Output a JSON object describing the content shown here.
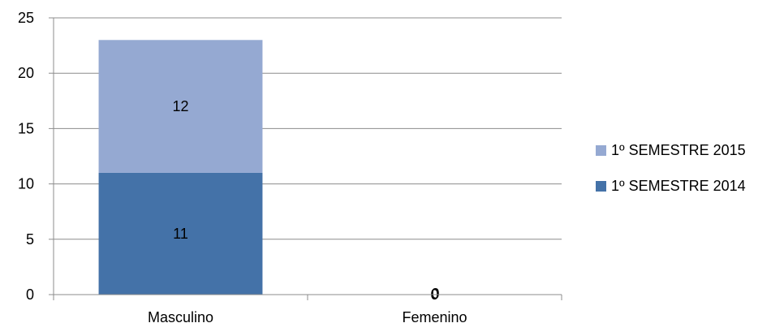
{
  "chart_data": {
    "type": "bar",
    "stacked": true,
    "categories": [
      "Masculino",
      "Femenino"
    ],
    "series": [
      {
        "name": "1º SEMESTRE 2014",
        "values": [
          11,
          0
        ],
        "color": "#4472A8",
        "labels": [
          "11",
          "0"
        ]
      },
      {
        "name": "1º SEMESTRE 2015",
        "values": [
          12,
          0
        ],
        "color": "#95A9D2",
        "labels": [
          "12",
          "0"
        ]
      }
    ],
    "ylim": [
      0,
      25
    ],
    "yticks": [
      0,
      5,
      10,
      15,
      20,
      25
    ],
    "grid": true,
    "legend": "right",
    "legend_order": [
      "1º SEMESTRE 2015",
      "1º SEMESTRE 2014"
    ],
    "title": "",
    "xlabel": "",
    "ylabel": ""
  }
}
